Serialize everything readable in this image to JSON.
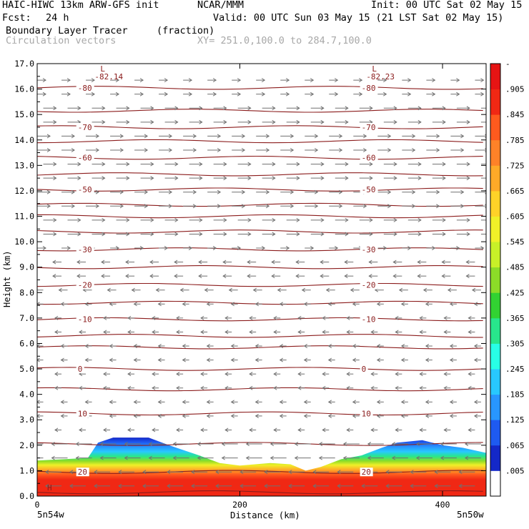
{
  "header": {
    "model": "HAIC-HIWC 13km ARW-GFS init",
    "org": "NCAR/MMM",
    "init": "Init: 00 UTC Sat 02 May 15",
    "fcst_label": "Fcst:",
    "fcst_value": "24 h",
    "valid": "Valid: 00 UTC Sun 03 May 15 (21 LST Sat 02 May 15)",
    "field_name": "Boundary Layer Tracer",
    "field_units": "(fraction)",
    "vector_label": "Circulation vectors",
    "xsec": "XY= 251.0,100.0 to 284.7,100.0"
  },
  "chart_data": {
    "type": "cross-section",
    "ylabel": "Height (km)",
    "xlabel": "Distance (km)",
    "ylim": [
      0,
      17
    ],
    "xlim": [
      0,
      443
    ],
    "y_ticks": [
      "0.0",
      "1.0",
      "2.0",
      "3.0",
      "4.0",
      "5.0",
      "6.0",
      "7.0",
      "8.0",
      "9.0",
      "10.0",
      "11.0",
      "12.0",
      "13.0",
      "14.0",
      "15.0",
      "16.0",
      "17.0"
    ],
    "x_ticks": [
      {
        "value": 0,
        "label": "0"
      },
      {
        "value": 200,
        "label": "200"
      },
      {
        "value": 400,
        "label": "400"
      }
    ],
    "left_endpoint": "5n54w",
    "right_endpoint": "5n50w",
    "colorbar_labels": [
      ".005",
      ".065",
      ".125",
      ".185",
      ".245",
      ".305",
      ".365",
      ".425",
      ".485",
      ".545",
      ".605",
      ".665",
      ".725",
      ".785",
      ".845",
      ".905",
      "-"
    ],
    "colorbar_colors": [
      "#ffffff",
      "#1428c8",
      "#1e5af0",
      "#2896ff",
      "#28c8ff",
      "#28ffe6",
      "#28e68c",
      "#32d232",
      "#8cdc28",
      "#c8f028",
      "#f0f028",
      "#ffd228",
      "#ffaa28",
      "#ff8228",
      "#ff5a1e",
      "#f02814",
      "#e61414"
    ],
    "temp_contours": [
      {
        "label": "-80",
        "y": 16.05
      },
      {
        "label": "-70",
        "y": 14.5
      },
      {
        "label": "-60",
        "y": 13.3
      },
      {
        "label": "-50",
        "y": 12.05
      },
      {
        "label": "-30",
        "y": 9.7
      },
      {
        "label": "-20",
        "y": 8.3
      },
      {
        "label": "-10",
        "y": 6.95
      },
      {
        "label": "0",
        "y": 5.0
      },
      {
        "label": "10",
        "y": 3.25
      },
      {
        "label": "20",
        "y": 0.95
      }
    ],
    "extra_contour_levels": [
      15.15,
      13.95,
      12.65,
      11.45,
      11.0,
      10.4,
      9.0,
      7.6,
      6.3,
      5.85,
      4.2,
      2.05,
      0.15
    ],
    "minima": [
      {
        "label": "L",
        "value": "-82.14",
        "x": 68
      },
      {
        "label": "L",
        "value": "-82.23",
        "x": 336
      }
    ],
    "surface_high": "H",
    "tracer_top_profile": {
      "x": [
        0,
        50,
        60,
        75,
        110,
        130,
        160,
        180,
        200,
        230,
        250,
        265,
        280,
        300,
        320,
        340,
        355,
        380,
        400,
        420,
        443
      ],
      "y": [
        1.4,
        1.5,
        2.1,
        2.3,
        2.3,
        2.0,
        1.6,
        1.3,
        1.2,
        1.3,
        1.25,
        1.0,
        1.15,
        1.45,
        1.6,
        1.9,
        2.1,
        2.2,
        2.0,
        1.9,
        1.7
      ]
    }
  }
}
